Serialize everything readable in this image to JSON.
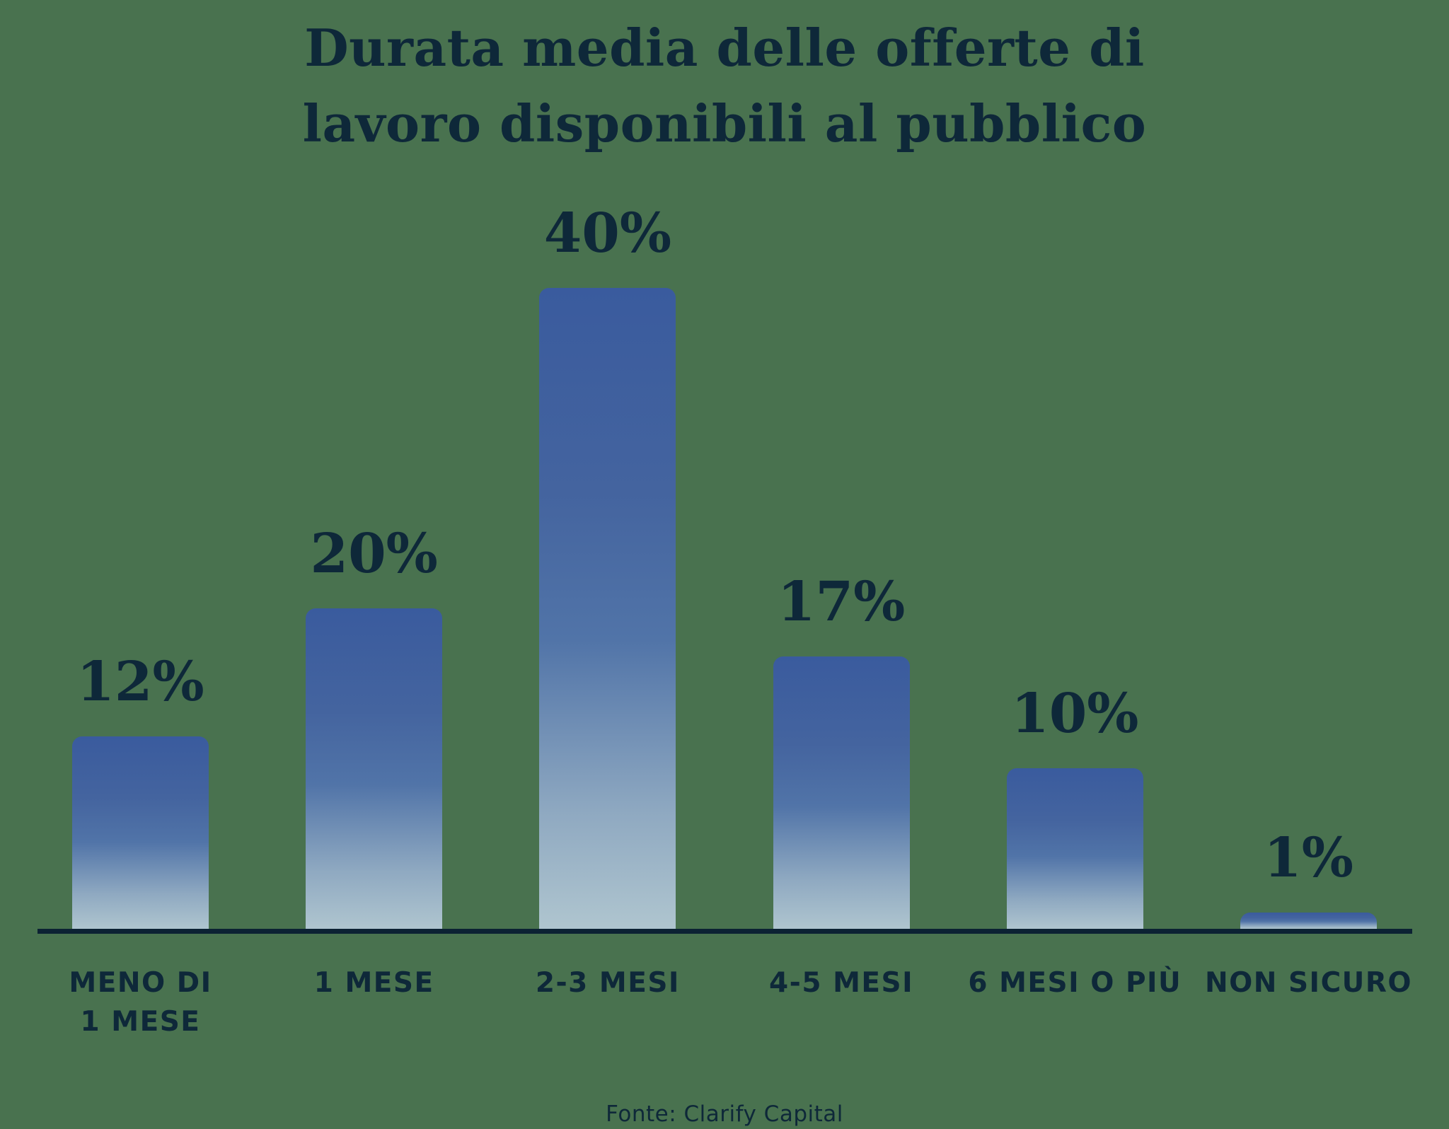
{
  "background_color": "#49724F",
  "text_color": "#0E2839",
  "chart_data": {
    "type": "bar",
    "title": "Durata media delle offerte di\nlavoro disponibili al pubblico",
    "categories": [
      "MENO DI\n1 MESE",
      "1 MESE",
      "2-3 MESI",
      "4-5 MESI",
      "6 MESI O PIÙ",
      "NON SICURO"
    ],
    "values": [
      12,
      20,
      40,
      17,
      10,
      1
    ],
    "value_labels": [
      "12%",
      "20%",
      "40%",
      "17%",
      "10%",
      "1%"
    ],
    "ylim": [
      0,
      40
    ],
    "grid": false,
    "legend": false,
    "bar_gradient_stops": [
      "#3A5B9E",
      "#44649F",
      "#5174A8",
      "#8FA9C1",
      "#AFC5CF"
    ],
    "axis_color": "#0C2233",
    "source": "Fonte: Clarify Capital"
  }
}
